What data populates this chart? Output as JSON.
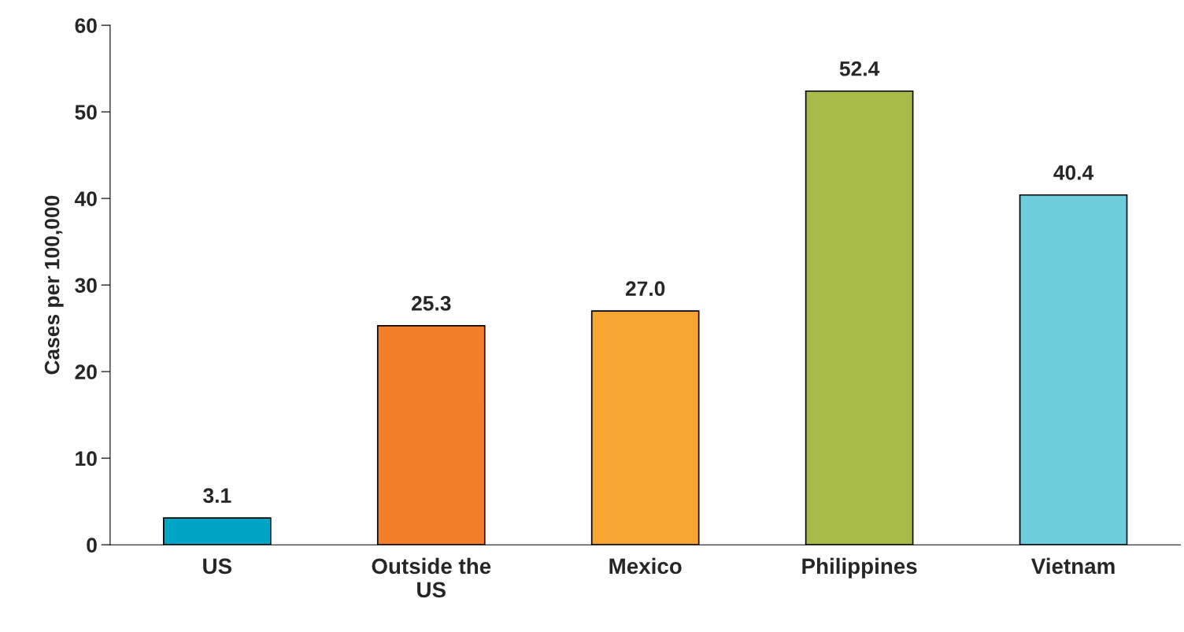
{
  "chart_data": {
    "type": "bar",
    "ylabel": "Cases per 100,000",
    "categories": [
      "US",
      "Outside the\nUS",
      "Mexico",
      "Philippines",
      "Vietnam"
    ],
    "values": [
      3.1,
      25.3,
      27.0,
      52.4,
      40.4
    ],
    "value_labels": [
      "3.1",
      "25.3",
      "27.0",
      "52.4",
      "40.4"
    ],
    "colors": [
      "#00a5c6",
      "#f47f2a",
      "#f9a533",
      "#a8bb4a",
      "#6dcddd"
    ],
    "ylim": [
      0,
      60
    ],
    "yticks": [
      0,
      10,
      20,
      30,
      40,
      50,
      60
    ],
    "grid": false,
    "legend": false
  }
}
